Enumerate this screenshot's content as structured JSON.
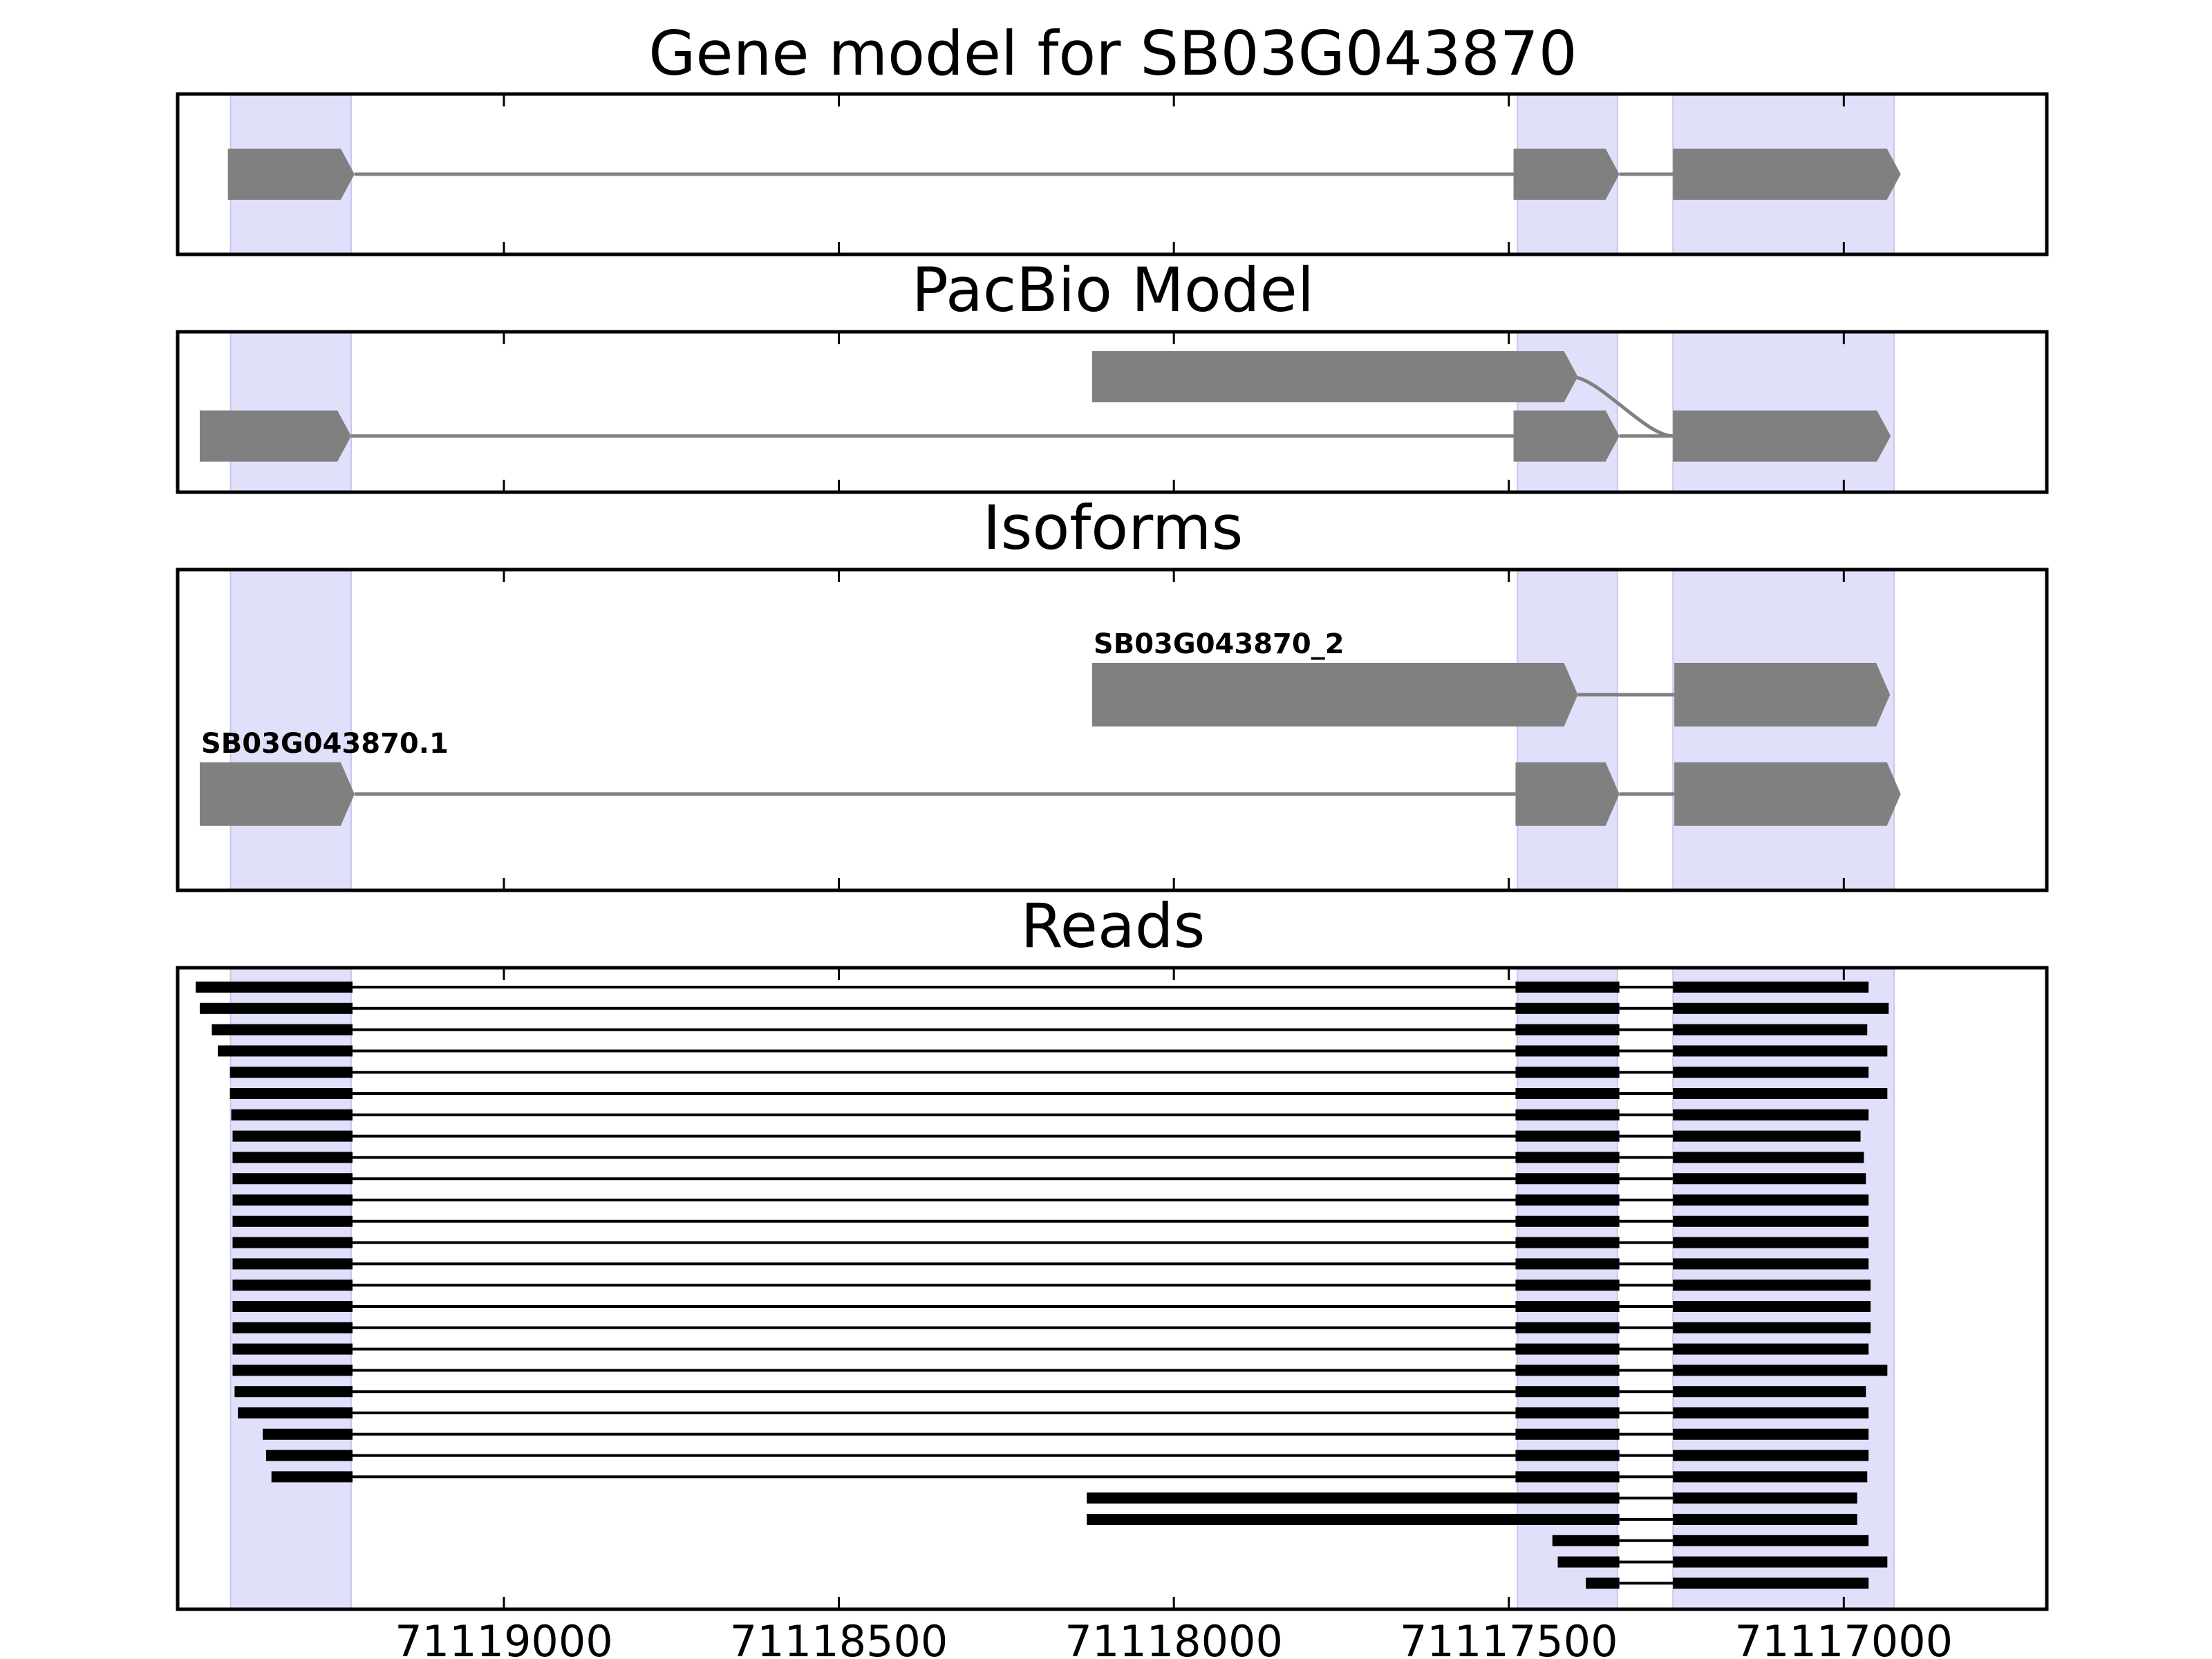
{
  "chart_data": {
    "type": "gene_model_tracks",
    "x_axis": {
      "orientation": "descending",
      "xlim": [
        71119487,
        71116697
      ],
      "ticks": [
        71119000,
        71118500,
        71118000,
        71117500,
        71117000
      ],
      "tick_labels": [
        "71119000",
        "71118500",
        "71118000",
        "71117500",
        "71117000"
      ]
    },
    "colors": {
      "highlight": "#e0e0fa",
      "feature": "#808080",
      "read": "#000000",
      "axes": "#000000"
    },
    "highlight_regions": [
      [
        71119408,
        71119228
      ],
      [
        71117487,
        71117338
      ],
      [
        71117255,
        71116925
      ]
    ],
    "panels": [
      {
        "id": "gene-model",
        "title": "Gene model for SB03G043870",
        "transcripts": [
          {
            "label": "",
            "row": 0.5,
            "exons": [
              [
                71119412,
                71119223
              ],
              [
                71117493,
                71117335
              ],
              [
                71117255,
                71116915
              ]
            ]
          }
        ]
      },
      {
        "id": "pacbio-model",
        "title": "PacBio Model",
        "transcripts": [
          {
            "label": "",
            "row": 0.28,
            "connector": "curve",
            "exons": [
              [
                71118122,
                71117397
              ],
              [
                71117255,
                71116930
              ]
            ]
          },
          {
            "label": "",
            "row": 0.65,
            "exons": [
              [
                71119454,
                71119228
              ],
              [
                71117493,
                71117335
              ],
              [
                71117255,
                71116930
              ]
            ]
          }
        ]
      },
      {
        "id": "isoforms",
        "title": "Isoforms",
        "transcripts": [
          {
            "label": "SB03G043870_2",
            "row": 0.39,
            "exons": [
              [
                71118122,
                71117397
              ],
              [
                71117253,
                71116931
              ]
            ]
          },
          {
            "label": "SB03G043870.1",
            "row": 0.7,
            "exons": [
              [
                71119454,
                71119223
              ],
              [
                71117490,
                71117335
              ],
              [
                71117253,
                71116915
              ]
            ]
          }
        ]
      }
    ],
    "reads_panel": {
      "title": "Reads",
      "reads": [
        {
          "exons": [
            [
              71119460,
              71119226
            ],
            [
              71117490,
              71117335
            ],
            [
              71117255,
              71116963
            ]
          ]
        },
        {
          "exons": [
            [
              71119454,
              71119226
            ],
            [
              71117490,
              71117335
            ],
            [
              71117255,
              71116933
            ]
          ]
        },
        {
          "exons": [
            [
              71119436,
              71119226
            ],
            [
              71117490,
              71117335
            ],
            [
              71117255,
              71116965
            ]
          ]
        },
        {
          "exons": [
            [
              71119427,
              71119226
            ],
            [
              71117490,
              71117335
            ],
            [
              71117255,
              71116935
            ]
          ]
        },
        {
          "exons": [
            [
              71119409,
              71119226
            ],
            [
              71117490,
              71117335
            ],
            [
              71117255,
              71116963
            ]
          ]
        },
        {
          "exons": [
            [
              71119409,
              71119226
            ],
            [
              71117490,
              71117335
            ],
            [
              71117255,
              71116935
            ]
          ]
        },
        {
          "exons": [
            [
              71119407,
              71119226
            ],
            [
              71117490,
              71117335
            ],
            [
              71117255,
              71116963
            ]
          ]
        },
        {
          "exons": [
            [
              71119405,
              71119226
            ],
            [
              71117490,
              71117335
            ],
            [
              71117255,
              71116975
            ]
          ]
        },
        {
          "exons": [
            [
              71119405,
              71119226
            ],
            [
              71117490,
              71117335
            ],
            [
              71117255,
              71116970
            ]
          ]
        },
        {
          "exons": [
            [
              71119405,
              71119226
            ],
            [
              71117490,
              71117335
            ],
            [
              71117255,
              71116967
            ]
          ]
        },
        {
          "exons": [
            [
              71119405,
              71119226
            ],
            [
              71117490,
              71117335
            ],
            [
              71117255,
              71116963
            ]
          ]
        },
        {
          "exons": [
            [
              71119405,
              71119226
            ],
            [
              71117490,
              71117335
            ],
            [
              71117255,
              71116963
            ]
          ]
        },
        {
          "exons": [
            [
              71119405,
              71119226
            ],
            [
              71117490,
              71117335
            ],
            [
              71117255,
              71116963
            ]
          ]
        },
        {
          "exons": [
            [
              71119405,
              71119226
            ],
            [
              71117490,
              71117335
            ],
            [
              71117255,
              71116963
            ]
          ]
        },
        {
          "exons": [
            [
              71119405,
              71119226
            ],
            [
              71117490,
              71117335
            ],
            [
              71117255,
              71116960
            ]
          ]
        },
        {
          "exons": [
            [
              71119405,
              71119226
            ],
            [
              71117490,
              71117335
            ],
            [
              71117255,
              71116960
            ]
          ]
        },
        {
          "exons": [
            [
              71119405,
              71119226
            ],
            [
              71117490,
              71117335
            ],
            [
              71117255,
              71116960
            ]
          ]
        },
        {
          "exons": [
            [
              71119405,
              71119226
            ],
            [
              71117490,
              71117335
            ],
            [
              71117255,
              71116963
            ]
          ]
        },
        {
          "exons": [
            [
              71119405,
              71119226
            ],
            [
              71117490,
              71117335
            ],
            [
              71117255,
              71116935
            ]
          ]
        },
        {
          "exons": [
            [
              71119402,
              71119226
            ],
            [
              71117490,
              71117335
            ],
            [
              71117255,
              71116967
            ]
          ]
        },
        {
          "exons": [
            [
              71119397,
              71119226
            ],
            [
              71117490,
              71117335
            ],
            [
              71117255,
              71116963
            ]
          ]
        },
        {
          "exons": [
            [
              71119360,
              71119226
            ],
            [
              71117490,
              71117335
            ],
            [
              71117255,
              71116963
            ]
          ]
        },
        {
          "exons": [
            [
              71119355,
              71119226
            ],
            [
              71117490,
              71117335
            ],
            [
              71117255,
              71116963
            ]
          ]
        },
        {
          "exons": [
            [
              71119347,
              71119226
            ],
            [
              71117490,
              71117335
            ],
            [
              71117255,
              71116965
            ]
          ]
        },
        {
          "exons": [
            [
              71118130,
              71117335
            ],
            [
              71117255,
              71116980
            ]
          ]
        },
        {
          "exons": [
            [
              71118130,
              71117335
            ],
            [
              71117255,
              71116980
            ]
          ]
        },
        {
          "exons": [
            [
              71117435,
              71117335
            ],
            [
              71117255,
              71116963
            ]
          ]
        },
        {
          "exons": [
            [
              71117427,
              71117335
            ],
            [
              71117255,
              71116935
            ]
          ]
        },
        {
          "exons": [
            [
              71117385,
              71117335
            ],
            [
              71117255,
              71116963
            ]
          ]
        }
      ]
    }
  }
}
